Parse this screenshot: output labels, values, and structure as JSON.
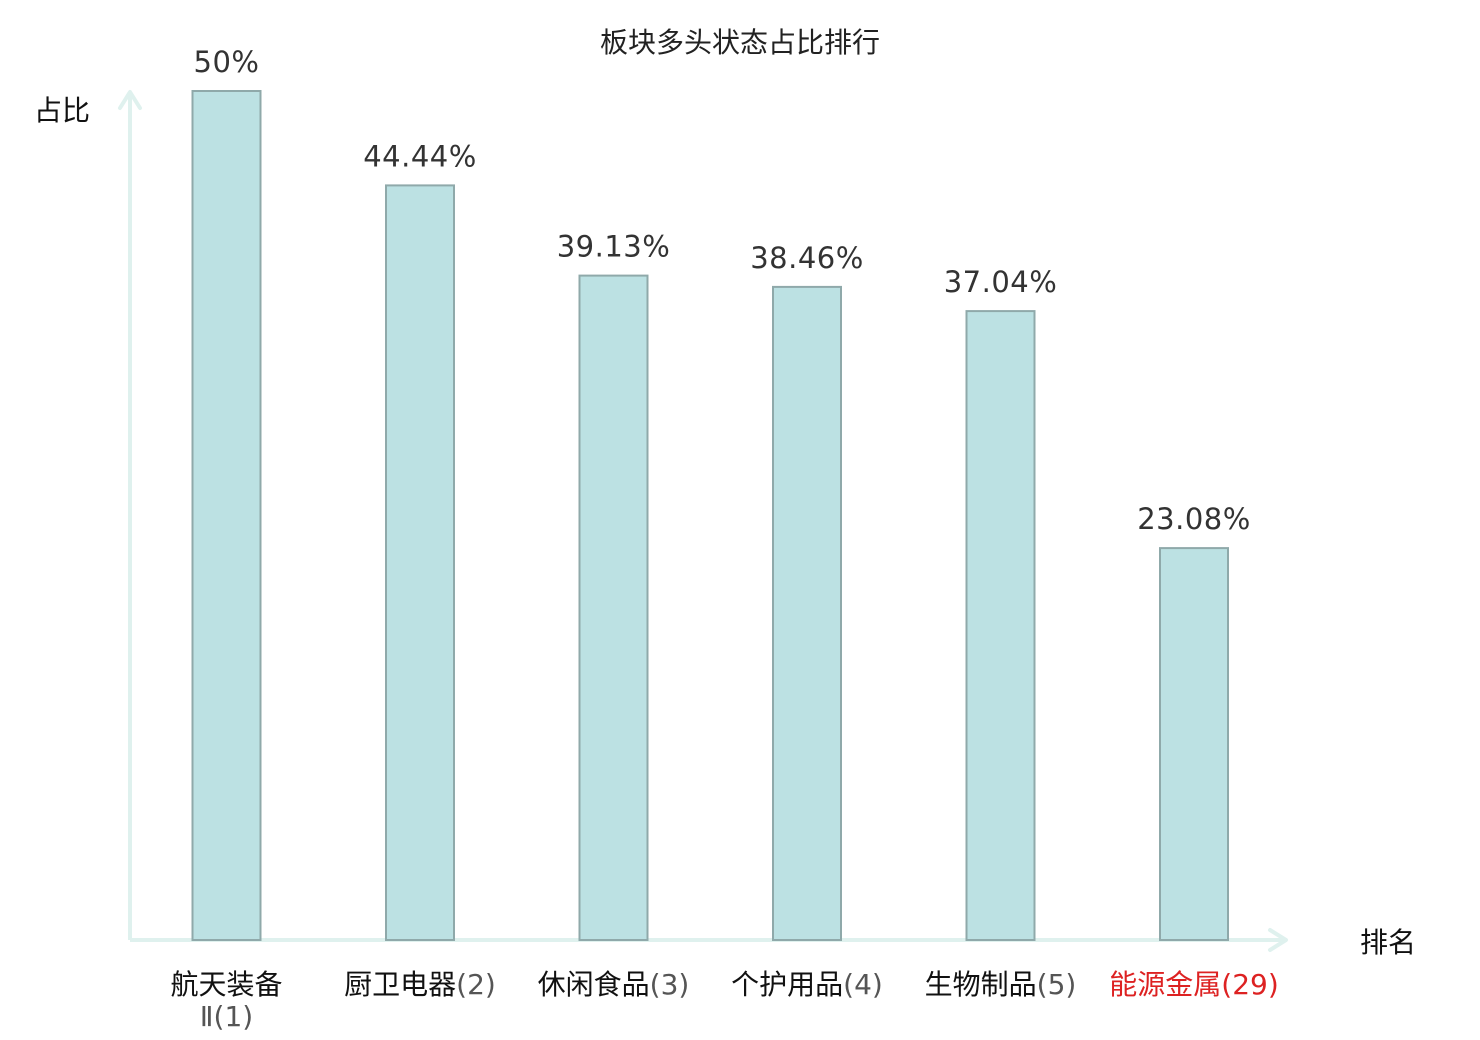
{
  "chart_data": {
    "type": "bar",
    "title": "板块多头状态占比排行",
    "ylabel": "占比",
    "xlabel": "排名",
    "categories": [
      {
        "name": "航天装备",
        "name2": "Ⅱ",
        "rank": "(1)",
        "highlight": false
      },
      {
        "name": "厨卫电器",
        "rank": "(2)",
        "highlight": false
      },
      {
        "name": "休闲食品",
        "rank": "(3)",
        "highlight": false
      },
      {
        "name": "个护用品",
        "rank": "(4)",
        "highlight": false
      },
      {
        "name": "生物制品",
        "rank": "(5)",
        "highlight": false
      },
      {
        "name": "能源金属",
        "rank": "(29)",
        "highlight": true
      }
    ],
    "values": [
      50,
      44.44,
      39.13,
      38.46,
      37.04,
      23.08
    ],
    "value_labels": [
      "50%",
      "44.44%",
      "39.13%",
      "38.46%",
      "37.04%",
      "23.08%"
    ],
    "ylim": [
      0,
      50
    ],
    "grid": false,
    "colors": {
      "bar_fill": "#bce1e3",
      "bar_stroke": "#8fa9aa",
      "axis": "#dff1ee",
      "highlight": "#dd2222"
    }
  }
}
